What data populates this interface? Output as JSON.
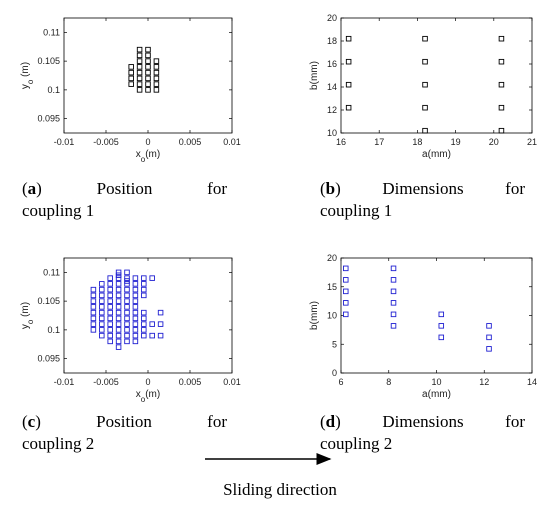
{
  "chart_data": [
    {
      "type": "scatter",
      "panel_letter": "a",
      "caption_word1": "Position",
      "caption_word2": "for",
      "caption_line2": "coupling 1",
      "xlabel": "x_o(m)",
      "ylabel": "y_o (m)",
      "xlim": [
        -0.01,
        0.01
      ],
      "ylim": [
        0.0925,
        0.1125
      ],
      "xticks": [
        "-0.01",
        "-0.005",
        "0",
        "0.005",
        "0.01"
      ],
      "yticks": [
        "0.095",
        "0.1",
        "0.105",
        "0.11"
      ],
      "marker_color": "#000000",
      "series": [
        {
          "x": [
            -0.002,
            -0.002,
            -0.002,
            -0.002,
            -0.001,
            -0.001,
            -0.001,
            -0.001,
            -0.001,
            -0.001,
            -0.001,
            -0.001,
            0,
            0,
            0,
            0,
            0,
            0,
            0,
            0,
            0.001,
            0.001,
            0.001,
            0.001,
            0.001,
            0.001
          ],
          "y": [
            0.101,
            0.102,
            0.103,
            0.104,
            0.1,
            0.101,
            0.102,
            0.103,
            0.104,
            0.105,
            0.106,
            0.107,
            0.1,
            0.101,
            0.102,
            0.103,
            0.104,
            0.105,
            0.106,
            0.107,
            0.1,
            0.101,
            0.102,
            0.103,
            0.104,
            0.105
          ]
        }
      ]
    },
    {
      "type": "scatter",
      "panel_letter": "b",
      "caption_word1": "Dimensions",
      "caption_word2": "for",
      "caption_line2": "coupling 1",
      "xlabel": "a(mm)",
      "ylabel": "b(mm)",
      "xlim": [
        16,
        21
      ],
      "ylim": [
        10,
        20
      ],
      "xticks": [
        "16",
        "17",
        "18",
        "19",
        "20",
        "21"
      ],
      "yticks": [
        "10",
        "12",
        "14",
        "16",
        "18",
        "20"
      ],
      "marker_color": "#000000",
      "series": [
        {
          "x": [
            16.2,
            16.2,
            16.2,
            16.2,
            18.2,
            18.2,
            18.2,
            18.2,
            18.2,
            20.2,
            20.2,
            20.2,
            20.2,
            20.2
          ],
          "y": [
            12.2,
            14.2,
            16.2,
            18.2,
            10.2,
            12.2,
            14.2,
            16.2,
            18.2,
            10.2,
            12.2,
            14.2,
            16.2,
            18.2
          ]
        }
      ]
    },
    {
      "type": "scatter",
      "panel_letter": "c",
      "caption_word1": "Position",
      "caption_word2": "for",
      "caption_line2": "coupling 2",
      "xlabel": "x_o(m)",
      "ylabel": "y_o (m)",
      "xlim": [
        -0.01,
        0.01
      ],
      "ylim": [
        0.0925,
        0.1125
      ],
      "xticks": [
        "-0.01",
        "-0.005",
        "0",
        "0.005",
        "0.01"
      ],
      "yticks": [
        "0.095",
        "0.1",
        "0.105",
        "0.11"
      ],
      "marker_color": "#1f1fd1",
      "series": [
        {
          "x": [
            -0.0065,
            -0.0065,
            -0.0065,
            -0.0065,
            -0.0065,
            -0.0065,
            -0.0065,
            -0.0065,
            -0.0055,
            -0.0055,
            -0.0055,
            -0.0055,
            -0.0055,
            -0.0055,
            -0.0055,
            -0.0055,
            -0.0055,
            -0.0055,
            -0.0045,
            -0.0045,
            -0.0045,
            -0.0045,
            -0.0045,
            -0.0045,
            -0.0045,
            -0.0045,
            -0.0045,
            -0.0045,
            -0.0045,
            -0.0045,
            -0.0035,
            -0.0035,
            -0.0035,
            -0.0035,
            -0.0035,
            -0.0035,
            -0.0035,
            -0.0035,
            -0.0035,
            -0.0035,
            -0.0035,
            -0.0035,
            -0.0035,
            -0.0035,
            -0.0035,
            -0.0025,
            -0.0025,
            -0.0025,
            -0.0025,
            -0.0025,
            -0.0025,
            -0.0025,
            -0.0025,
            -0.0025,
            -0.0025,
            -0.0025,
            -0.0025,
            -0.0025,
            -0.0025,
            -0.0015,
            -0.0015,
            -0.0015,
            -0.0015,
            -0.0015,
            -0.0015,
            -0.0015,
            -0.0015,
            -0.0015,
            -0.0015,
            -0.0015,
            -0.0015,
            -0.0005,
            -0.0005,
            -0.0005,
            -0.0005,
            -0.0005,
            -0.0005,
            -0.0005,
            -0.0005,
            -0.0005,
            0.0005,
            0.0005,
            0.0005,
            0.0015,
            0.0015,
            0.0015
          ],
          "y": [
            0.1,
            0.101,
            0.102,
            0.103,
            0.104,
            0.105,
            0.106,
            0.107,
            0.099,
            0.1,
            0.101,
            0.102,
            0.103,
            0.104,
            0.105,
            0.106,
            0.107,
            0.108,
            0.098,
            0.099,
            0.1,
            0.101,
            0.102,
            0.103,
            0.104,
            0.105,
            0.106,
            0.107,
            0.108,
            0.109,
            0.097,
            0.098,
            0.099,
            0.1,
            0.101,
            0.102,
            0.103,
            0.104,
            0.105,
            0.106,
            0.107,
            0.108,
            0.109,
            0.11,
            0.1095,
            0.098,
            0.099,
            0.1,
            0.101,
            0.102,
            0.103,
            0.104,
            0.105,
            0.106,
            0.107,
            0.108,
            0.109,
            0.11,
            0.1085,
            0.098,
            0.099,
            0.1,
            0.101,
            0.102,
            0.103,
            0.104,
            0.105,
            0.106,
            0.107,
            0.108,
            0.109,
            0.099,
            0.1,
            0.101,
            0.102,
            0.103,
            0.106,
            0.107,
            0.108,
            0.109,
            0.099,
            0.101,
            0.109,
            0.099,
            0.101,
            0.103
          ]
        }
      ]
    },
    {
      "type": "scatter",
      "panel_letter": "d",
      "caption_word1": "Dimensions",
      "caption_word2": "for",
      "caption_line2": "coupling 2",
      "xlabel": "a(mm)",
      "ylabel": "b(mm)",
      "xlim": [
        6,
        14
      ],
      "ylim": [
        0,
        20
      ],
      "xticks": [
        "6",
        "8",
        "10",
        "12",
        "14"
      ],
      "yticks": [
        "0",
        "5",
        "10",
        "15",
        "20"
      ],
      "marker_color": "#1f1fd1",
      "series": [
        {
          "x": [
            6.2,
            6.2,
            6.2,
            6.2,
            6.2,
            8.2,
            8.2,
            8.2,
            8.2,
            8.2,
            8.2,
            10.2,
            10.2,
            10.2,
            12.2,
            12.2,
            12.2
          ],
          "y": [
            10.2,
            12.2,
            14.2,
            16.2,
            18.2,
            8.2,
            10.2,
            12.2,
            14.2,
            16.2,
            18.2,
            6.2,
            8.2,
            10.2,
            4.2,
            6.2,
            8.2
          ]
        }
      ]
    }
  ],
  "sliding_label": "Sliding direction"
}
